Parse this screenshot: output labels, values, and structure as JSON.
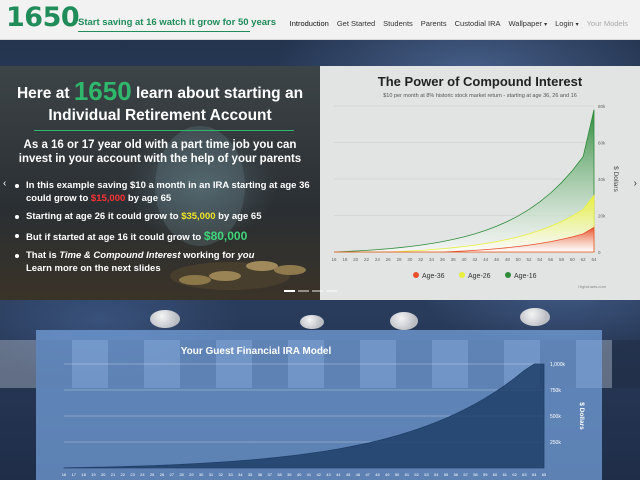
{
  "brand": {
    "name": "1650",
    "tagline": "Start saving at 16 watch it grow for 50 years"
  },
  "nav": {
    "items": [
      {
        "label": "Introduction",
        "state": "active"
      },
      {
        "label": "Get Started",
        "state": "normal"
      },
      {
        "label": "Students",
        "state": "normal"
      },
      {
        "label": "Parents",
        "state": "normal"
      },
      {
        "label": "Custodial IRA",
        "state": "normal"
      },
      {
        "label": "Wallpaper",
        "state": "dropdown"
      },
      {
        "label": "Login",
        "state": "dropdown"
      },
      {
        "label": "Your Models",
        "state": "disabled"
      }
    ]
  },
  "slide": {
    "title_prefix": "Here at",
    "title_number": "1650",
    "title_suffix": "learn about starting an",
    "title_line2": "Individual Retirement Account",
    "subtitle": "As a 16 or 17 year old with a part time job you can invest in your account with the help of your parents",
    "bullets": [
      {
        "a": "In this example saving $10 a month in an IRA starting at age 36 could grow to ",
        "amount": "$15,000",
        "b": " by age 65"
      },
      {
        "a": "Starting at age 26 it could grow to ",
        "amount": "$35,000",
        "b": " by age 65"
      },
      {
        "a": "But if started at age 16 it could grow to ",
        "amount": "$80,000",
        "b": ""
      }
    ],
    "last_bullet": {
      "a": "That is ",
      "em": "Time & Compound Interest",
      "b": " working for ",
      "em2": "you",
      "c": "Learn more on the next slides"
    },
    "prev": "‹",
    "next": "›",
    "active_indicator": 0,
    "indicator_count": 4
  },
  "compound_chart": {
    "credit": "Highcharts.com",
    "colors": {
      "age16": "#2e8b3a",
      "age26": "#e8ef3c",
      "age36": "#e8502c"
    },
    "chart_data": {
      "type": "area",
      "title": "The Power of Compound Interest",
      "subtitle": "$10 per month at 8% historic stock market return - starting at age 36, 26 and 16",
      "xlabel": "",
      "ylabel": "$ Dollars",
      "x": [
        16,
        18,
        20,
        22,
        24,
        26,
        28,
        30,
        32,
        34,
        36,
        38,
        40,
        42,
        44,
        46,
        48,
        50,
        52,
        54,
        56,
        58,
        60,
        62,
        64
      ],
      "ylim": [
        0,
        80000
      ],
      "yticks": [
        "0",
        "20k",
        "40k",
        "60k",
        "80k"
      ],
      "legend_position": "bottom",
      "series": [
        {
          "name": "Age-36",
          "values": [
            0,
            0,
            0,
            0,
            0,
            0,
            0,
            0,
            0,
            0,
            0,
            260,
            560,
            910,
            1320,
            1800,
            2360,
            3010,
            3770,
            4660,
            5690,
            6900,
            8310,
            9950,
            13500
          ]
        },
        {
          "name": "Age-26",
          "values": [
            0,
            0,
            0,
            0,
            0,
            0,
            260,
            560,
            910,
            1320,
            1800,
            2360,
            3010,
            3770,
            4660,
            5690,
            6900,
            8310,
            9950,
            11870,
            14110,
            16720,
            19770,
            23330,
            31000
          ]
        },
        {
          "name": "Age-16",
          "values": [
            0,
            260,
            560,
            910,
            1320,
            1800,
            2360,
            3010,
            3770,
            4660,
            5690,
            6900,
            8310,
            9950,
            11870,
            14110,
            16720,
            19770,
            23330,
            27480,
            32330,
            37990,
            44590,
            52290,
            78000
          ]
        }
      ]
    }
  },
  "ira_model": {
    "colors": {
      "area": "#1f3f68"
    },
    "chart_data": {
      "type": "area",
      "title": "Your Guest Financial IRA Model",
      "ylabel": "$ Dollars",
      "x": [
        16,
        17,
        18,
        19,
        20,
        21,
        22,
        23,
        24,
        25,
        26,
        27,
        28,
        29,
        30,
        31,
        32,
        33,
        34,
        35,
        36,
        37,
        38,
        39,
        40,
        41,
        42,
        43,
        44,
        45,
        46,
        47,
        48,
        49,
        50,
        51,
        52,
        53,
        54,
        55,
        56,
        57,
        58,
        59,
        60,
        61,
        62,
        63,
        64,
        65
      ],
      "ylim": [
        0,
        1000000
      ],
      "yticks": [
        "",
        "250k",
        "500k",
        "750k",
        "1,000k"
      ],
      "series": [
        {
          "name": "",
          "values": [
            1500,
            3000,
            4700,
            6600,
            8700,
            11000,
            13500,
            16300,
            19300,
            22700,
            26300,
            30300,
            34600,
            39300,
            44400,
            49900,
            55900,
            62400,
            69400,
            77100,
            85400,
            94400,
            104200,
            114800,
            126300,
            138800,
            152400,
            167100,
            183100,
            200400,
            219200,
            239600,
            261700,
            285700,
            311700,
            339900,
            370500,
            403700,
            439700,
            478800,
            521200,
            567200,
            617100,
            671200,
            730000,
            793700,
            862800,
            937800,
            1000000,
            1000000
          ]
        }
      ]
    }
  }
}
